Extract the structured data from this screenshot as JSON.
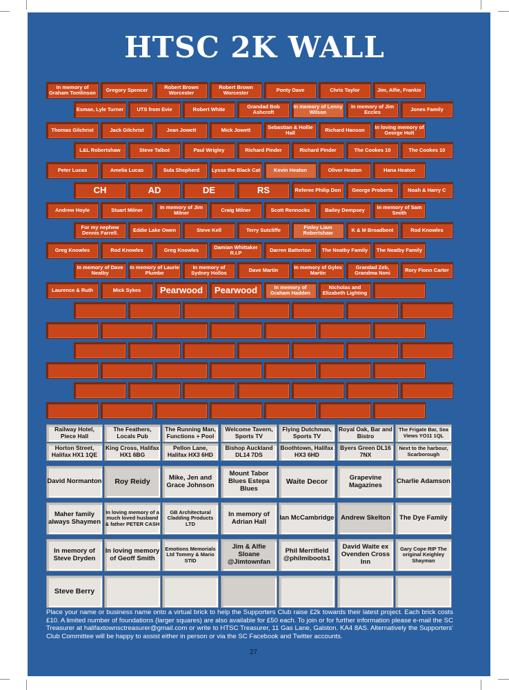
{
  "title": "HTSC 2K WALL",
  "bricks": [
    "In memory of Graham Tomlinson",
    "Gregory Spencer",
    "Robert Brown Worcester",
    "Robert Brown Worcester",
    "Ponty Dave",
    "Chris Taylor",
    "Jim, Alfie, Frankie",
    "Esmae, Lyle Turner",
    "UTS from Evie",
    "Robert White",
    "Grandad Bob Ashcroft",
    "In memory of Lenny Wilson",
    "In memory of Jim Eccles",
    "Jones Family",
    "Thomas Gilchrist",
    "Jack Gilchrist",
    "Jean Jowett",
    "Mick Jowett",
    "Sebastian & Hollie Hall",
    "Richard Hanson",
    "In loving memory of George Holt",
    "L&L Robertshaw",
    "Steve Talbot",
    "Paul Wrigley",
    "Richard Pinder",
    "Richard Pinder",
    "The Cookes 10",
    "The Cookes 10",
    "Peter Lucas",
    "Amelia Lucas",
    "Sula Shepherd",
    "Lyssa the Black Cat",
    "Kevin Heaton",
    "Oliver Heaton",
    "Hana Heaton",
    "CH",
    "AD",
    "DE",
    "RS",
    "Referee Philip Don",
    "George Proberts",
    "Noah & Harry C",
    "Andrew Hoyle",
    "Stuart Milner",
    "In memory of Jim Milner",
    "Craig Milner",
    "Scott Rennocks",
    "Bailey Dempsey",
    "In memory of Sam Smith",
    "For my nephew Dennis Farrell.",
    "Eddie Lake Owen",
    "Steve Kell",
    "Terry Sutcliffe",
    "Finley Liam Robertshaw",
    "K & M Broadbent",
    "Rod Knowles",
    "Greg Knowles",
    "Rod Knowles",
    "Greg Knowles",
    "Damian Whittaker R.I.P",
    "Darren Batterton",
    "The Neatby Family",
    "The Neatby Family",
    "In memory of Dave Neatby",
    "In memory of Laurie Plumbe",
    "In memory of Sydney Hollos",
    "Dave Martin",
    "In memory of Gyles Martin",
    "Grandad Zeb, Grandma Noni",
    "Rory Fionn Carter",
    "Laurence & Ruth",
    "Mick Sykes",
    "Pearwood",
    "Pearwood",
    "In memory of Graham Hadden",
    "Nicholas and Elizabeth Lighting",
    ""
  ],
  "sponsor_row1": [
    "Railway Hotel, Piece Hall",
    "The Feathers, Locals Pub",
    "The Running Man, Functions + Pool",
    "Welcome Tavern, Sports TV",
    "Flying Dutchman, Sports TV",
    "Royal Oak, Bar and Bistro",
    "The Frigate Bar, Sea Views YO11 1QL"
  ],
  "sponsor_row2": [
    "Horton Street, Halifax HX1 1QE",
    "King Cross, Halifax HX1 6BG",
    "Pellon Lane, Halifax HX3 6HD",
    "Bishop Auckland DL14 7DS",
    "Boothtown, Halifax HX3 6HD",
    "Byers Green DL16 7NX",
    "Next to the harbour, Scarborough"
  ],
  "foundations": [
    [
      "David Normanton",
      "Roy Reidy",
      "Mike, Jen and Grace Johnson",
      "Mount Tabor Blues Estepa Blues",
      "Waite Decor",
      "Grapevine Magazines",
      "Charlie Adamson"
    ],
    [
      "Maher family always Shaymen",
      "In loving memory of a much loved husband & father PETER CASH",
      "GB Architectural Cladding Products LTD",
      "In memory of Adrian Hall",
      "Ian McCambridge",
      "Andrew Skelton",
      "The Dye Family"
    ],
    [
      "In memory of Steve Dryden",
      "In loving memory of Geoff Smith",
      "Emotions Memorials Ltd Tommy & Mario STID",
      "Jim & Alfie Sloane @Jimtownfan",
      "Phil Merrifield @philmiboots1",
      "David Waite ex Ovenden Cross Inn",
      "Gary Cope RIP The original Keighley Shayman"
    ],
    [
      "Steve Berry",
      "",
      "",
      "",
      "",
      "",
      ""
    ]
  ],
  "footer": "Place your name or business name onto a virtual brick to help the Supporters Club raise £2k towards their latest project. Each brick costs £10. A limited number of foundations (larger squares) are also available for £50 each. To join or for further information please e-mail the SC Treasurer at halifaxtownsctreasurer@gmail.com or write to HTSC Treasurer, 11 Gas Lane, Galston. KA4 8AS. Alternatively the Supporters' Club Committee will be happy to assist either in person or via the SC Facebook and Twitter accounts.",
  "page_number": "27"
}
